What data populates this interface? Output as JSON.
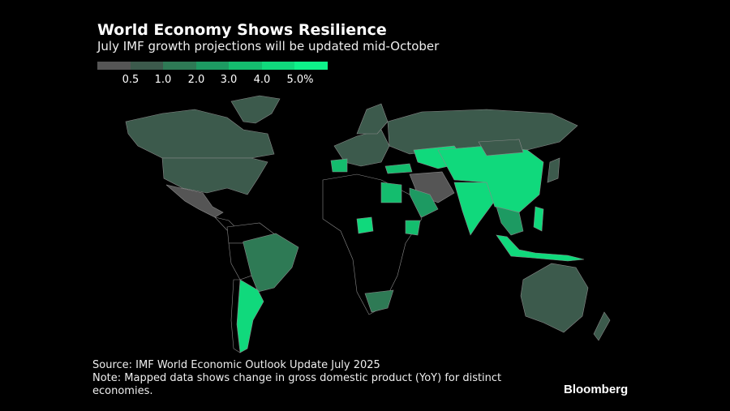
{
  "header": {
    "title": "World Economy Shows Resilience",
    "subtitle": "July IMF growth projections will be updated mid-October"
  },
  "legend": {
    "colors": [
      "#555555",
      "#3c5a4c",
      "#2e7a55",
      "#1d9a62",
      "#14bd6e",
      "#10d97c",
      "#0ef28a"
    ],
    "ticks": [
      "0.5",
      "1.0",
      "2.0",
      "3.0",
      "4.0",
      "5.0%"
    ]
  },
  "map": {
    "no_data_color": "#000000",
    "border_color": "#9a9a9a"
  },
  "footer": {
    "source": "Source: IMF World Economic Outlook Update July 2025",
    "note": "Note: Mapped data shows change in gross domestic product (YoY) for distinct economies.",
    "brand": "Bloomberg"
  }
}
